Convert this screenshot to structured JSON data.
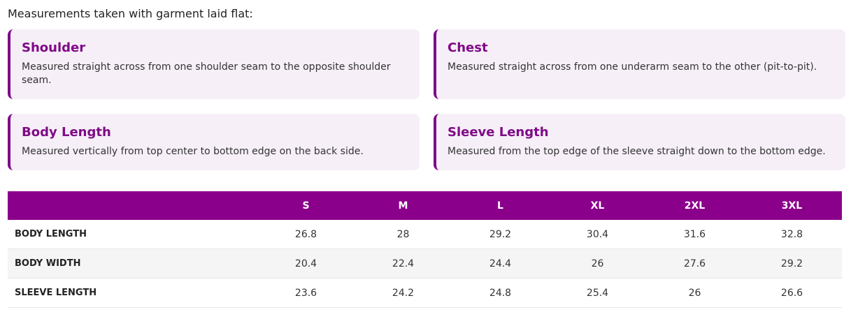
{
  "intro": "Measurements taken with garment laid flat:",
  "cards": [
    {
      "title": "Shoulder",
      "desc": "Measured straight across from one shoulder seam to the opposite shoulder seam."
    },
    {
      "title": "Chest",
      "desc": "Measured straight across from one underarm seam to the other (pit-to-pit)."
    },
    {
      "title": "Body Length",
      "desc": "Measured vertically from top center to bottom edge on the back side."
    },
    {
      "title": "Sleeve Length",
      "desc": "Measured from the top edge of the sleeve straight down to the bottom edge."
    }
  ],
  "table": {
    "sizes": [
      "S",
      "M",
      "L",
      "XL",
      "2XL",
      "3XL"
    ],
    "rows": [
      {
        "label": "BODY LENGTH",
        "values": [
          "26.8",
          "28",
          "29.2",
          "30.4",
          "31.6",
          "32.8"
        ]
      },
      {
        "label": "BODY WIDTH",
        "values": [
          "20.4",
          "22.4",
          "24.4",
          "26",
          "27.6",
          "29.2"
        ]
      },
      {
        "label": "SLEEVE LENGTH",
        "values": [
          "23.6",
          "24.2",
          "24.8",
          "25.4",
          "26",
          "26.6"
        ]
      }
    ]
  },
  "colors": {
    "accent": "#7f0a86",
    "header_bg": "#8b008b",
    "card_bg": "#f6eff8"
  }
}
